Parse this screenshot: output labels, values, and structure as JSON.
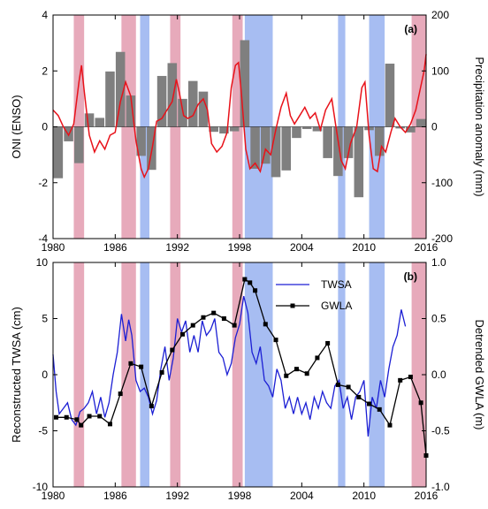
{
  "chart_data": [
    {
      "type": "bar+line",
      "panel_label": "(a)",
      "ylabel_left": "ONI (ENSO)",
      "ylabel_right": "Precipitation anomaly (mm)",
      "xlim": [
        1980,
        2016
      ],
      "ylim_left": [
        -4,
        4
      ],
      "ylim_right": [
        -200,
        200
      ],
      "xticks": [
        "1980",
        "1986",
        "1992",
        "1998",
        "2004",
        "2010",
        "2016"
      ],
      "yticks_left": [
        "-4",
        "-2",
        "0",
        "2",
        "4"
      ],
      "yticks_right": [
        "-200",
        "-100",
        "0",
        "100",
        "200"
      ],
      "colors": {
        "bars": "#7f7f7f",
        "oni": "#e8121a",
        "el_nino": "#e7aabb",
        "la_nina": "#a7bdf2"
      },
      "el_nino_periods": [
        [
          1982.0,
          1983.0
        ],
        [
          1986.6,
          1988.0
        ],
        [
          1991.3,
          1992.3
        ],
        [
          1997.3,
          1998.3
        ],
        [
          2014.6,
          2016.0
        ]
      ],
      "la_nina_periods": [
        [
          1988.4,
          1989.3
        ],
        [
          1998.5,
          2001.2
        ],
        [
          2007.5,
          2008.2
        ],
        [
          2010.5,
          2012.0
        ]
      ],
      "bars": {
        "x": [
          1980.5,
          1981.5,
          1982.5,
          1983.5,
          1984.5,
          1985.5,
          1986.5,
          1987.5,
          1988.5,
          1989.5,
          1990.5,
          1991.5,
          1992.5,
          1993.5,
          1994.5,
          1995.5,
          1996.5,
          1997.5,
          1998.5,
          1999.5,
          2000.5,
          2001.5,
          2002.5,
          2003.5,
          2004.5,
          2005.5,
          2006.5,
          2007.5,
          2008.5,
          2009.5,
          2010.5,
          2011.5,
          2012.5,
          2013.5,
          2014.5,
          2015.5
        ],
        "values": [
          -92,
          -26,
          -65,
          24,
          16,
          99,
          134,
          56,
          -52,
          -77,
          91,
          114,
          50,
          82,
          63,
          -9,
          -12,
          -8,
          155,
          -75,
          -66,
          -90,
          -78,
          -20,
          -4,
          -8,
          -56,
          -88,
          -56,
          -126,
          -6,
          -52,
          113,
          -3,
          -10,
          14
        ]
      },
      "oni": {
        "x": [
          1980.0,
          1980.5,
          1981.0,
          1981.5,
          1982.0,
          1982.5,
          1982.75,
          1983.0,
          1983.5,
          1984.0,
          1984.5,
          1985.0,
          1985.5,
          1986.0,
          1986.5,
          1987.0,
          1987.5,
          1988.0,
          1988.5,
          1988.8,
          1989.2,
          1989.6,
          1990.0,
          1990.5,
          1991.0,
          1991.5,
          1991.9,
          1992.2,
          1992.6,
          1993.0,
          1993.5,
          1994.0,
          1994.5,
          1994.9,
          1995.3,
          1995.8,
          1996.3,
          1996.8,
          1997.2,
          1997.6,
          1997.9,
          1998.2,
          1998.6,
          1999.0,
          1999.5,
          2000.0,
          2000.5,
          2001.0,
          2001.5,
          2002.0,
          2002.5,
          2002.9,
          2003.3,
          2003.8,
          2004.3,
          2004.8,
          2005.3,
          2005.8,
          2006.3,
          2006.9,
          2007.3,
          2007.8,
          2008.2,
          2008.7,
          2009.3,
          2009.8,
          2010.1,
          2010.5,
          2010.9,
          2011.3,
          2011.7,
          2012.1,
          2012.6,
          2013.0,
          2013.5,
          2014.0,
          2014.5,
          2015.0,
          2015.4,
          2015.8,
          2016.0
        ],
        "values": [
          0.6,
          0.4,
          0.0,
          -0.3,
          0.1,
          1.6,
          2.2,
          1.3,
          -0.3,
          -0.9,
          -0.5,
          -0.8,
          -0.3,
          -0.2,
          0.9,
          1.6,
          1.1,
          -0.5,
          -1.5,
          -1.8,
          -1.5,
          -0.7,
          0.2,
          0.3,
          0.6,
          0.9,
          1.7,
          1.2,
          0.4,
          0.3,
          0.4,
          0.8,
          1.0,
          0.6,
          -0.6,
          -0.9,
          -0.7,
          -0.2,
          1.4,
          2.2,
          2.3,
          1.1,
          -0.8,
          -1.5,
          -1.3,
          -1.6,
          -0.8,
          -1.0,
          -0.1,
          0.7,
          1.2,
          0.4,
          0.1,
          0.4,
          0.7,
          0.3,
          0.5,
          -0.1,
          0.6,
          1.0,
          0.0,
          -1.2,
          -1.5,
          -0.6,
          0.0,
          1.4,
          1.6,
          -0.3,
          -1.5,
          -1.6,
          -0.7,
          -0.9,
          -0.2,
          0.3,
          0.0,
          -0.2,
          0.1,
          0.6,
          1.3,
          2.0,
          2.6
        ]
      }
    },
    {
      "type": "line",
      "panel_label": "(b)",
      "ylabel_left": "Reconstructed TWSA (cm)",
      "ylabel_right": "Detrended GWLA (m)",
      "xlim": [
        1980,
        2016
      ],
      "ylim_left": [
        -10,
        10
      ],
      "ylim_right": [
        -1.0,
        1.0
      ],
      "xticks": [
        "1980",
        "1986",
        "1992",
        "1998",
        "2004",
        "2010",
        "2016"
      ],
      "yticks_left": [
        "-10",
        "-5",
        "0",
        "5",
        "10"
      ],
      "yticks_right": [
        "-1.0",
        "-0.5",
        "0.0",
        "0.5",
        "1.0"
      ],
      "colors": {
        "twsa": "#1c1fd4",
        "gwla": "#000000",
        "el_nino": "#e7aabb",
        "la_nina": "#a7bdf2"
      },
      "legend": [
        "TWSA",
        "GWLA"
      ],
      "el_nino_periods": [
        [
          1982.0,
          1983.0
        ],
        [
          1986.6,
          1988.0
        ],
        [
          1991.3,
          1992.3
        ],
        [
          1997.3,
          1998.3
        ],
        [
          2014.6,
          2016.0
        ]
      ],
      "la_nina_periods": [
        [
          1988.4,
          1989.3
        ],
        [
          1998.5,
          2001.2
        ],
        [
          2007.5,
          2008.2
        ],
        [
          2010.5,
          2012.0
        ]
      ],
      "twsa": {
        "x": [
          1980.0,
          1980.3,
          1980.6,
          1981.0,
          1981.4,
          1981.8,
          1982.2,
          1982.6,
          1983.0,
          1983.4,
          1983.8,
          1984.2,
          1984.6,
          1985.0,
          1985.4,
          1985.8,
          1986.2,
          1986.6,
          1987.0,
          1987.3,
          1987.6,
          1988.0,
          1988.4,
          1988.8,
          1989.2,
          1989.6,
          1990.0,
          1990.4,
          1990.8,
          1991.2,
          1991.6,
          1992.0,
          1992.4,
          1992.8,
          1993.2,
          1993.6,
          1994.0,
          1994.4,
          1994.8,
          1995.2,
          1995.6,
          1996.0,
          1996.4,
          1996.8,
          1997.2,
          1997.6,
          1998.0,
          1998.4,
          1998.8,
          1999.2,
          1999.6,
          2000.0,
          2000.4,
          2000.8,
          2001.2,
          2001.6,
          2002.0,
          2002.4,
          2002.8,
          2003.2,
          2003.6,
          2004.0,
          2004.4,
          2004.8,
          2005.2,
          2005.6,
          2006.0,
          2006.4,
          2006.8,
          2007.2,
          2007.6,
          2008.0,
          2008.4,
          2008.8,
          2009.2,
          2009.6,
          2010.0,
          2010.4,
          2010.8,
          2011.2,
          2011.6,
          2012.0,
          2012.4,
          2012.8,
          2013.2,
          2013.6,
          2014.0
        ],
        "values": [
          1.8,
          -1.5,
          -3.5,
          -3.0,
          -2.5,
          -4.0,
          -4.5,
          -3.3,
          -3.0,
          -2.5,
          -1.5,
          -3.5,
          -2.0,
          -3.8,
          -2.5,
          0.0,
          2.0,
          5.4,
          3.0,
          4.9,
          3.5,
          -0.5,
          -1.5,
          -1.2,
          -2.0,
          -3.5,
          -2.3,
          0.5,
          2.5,
          -0.5,
          1.5,
          5.0,
          3.8,
          4.8,
          2.0,
          3.5,
          2.0,
          4.8,
          3.5,
          4.0,
          5.0,
          2.0,
          1.5,
          0.0,
          1.0,
          3.3,
          4.5,
          7.0,
          5.5,
          2.0,
          1.0,
          2.5,
          -0.5,
          -1.0,
          -2.0,
          0.5,
          -0.5,
          -3.0,
          -2.0,
          -3.5,
          -2.0,
          -3.5,
          -2.5,
          -4.0,
          -2.0,
          -3.0,
          -1.5,
          -2.5,
          -3.0,
          -1.0,
          -0.5,
          -3.0,
          -2.0,
          -4.0,
          -2.0,
          -1.5,
          -0.5,
          -5.5,
          -2.0,
          -3.0,
          -0.5,
          -2.0,
          0.5,
          2.5,
          3.5,
          5.8,
          4.3
        ]
      },
      "gwla": {
        "x": [
          1980.3,
          1981.3,
          1982.3,
          1982.7,
          1983.5,
          1984.5,
          1985.5,
          1986.5,
          1987.5,
          1988.5,
          1989.5,
          1990.5,
          1991.5,
          1992.5,
          1993.5,
          1994.5,
          1995.5,
          1996.5,
          1997.5,
          1998.5,
          1999.0,
          1999.5,
          2000.5,
          2001.5,
          2002.5,
          2003.5,
          2004.5,
          2005.5,
          2006.5,
          2007.5,
          2008.5,
          2009.5,
          2010.5,
          2011.5,
          2012.5,
          2013.5,
          2014.5,
          2015.5,
          2016.0
        ],
        "values": [
          -0.38,
          -0.38,
          -0.4,
          -0.45,
          -0.37,
          -0.37,
          -0.44,
          -0.17,
          0.1,
          0.07,
          -0.28,
          0.02,
          0.22,
          0.36,
          0.44,
          0.51,
          0.55,
          0.5,
          0.44,
          0.85,
          0.82,
          0.75,
          0.45,
          0.31,
          -0.01,
          0.05,
          0.01,
          0.15,
          0.28,
          -0.09,
          -0.11,
          -0.2,
          -0.26,
          -0.31,
          -0.45,
          -0.05,
          -0.02,
          -0.25,
          -0.72
        ]
      }
    }
  ]
}
